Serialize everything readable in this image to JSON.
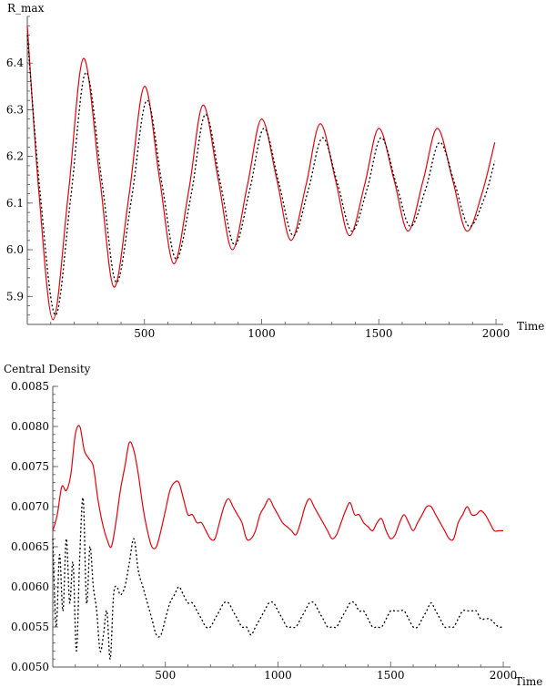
{
  "chart_data": [
    {
      "type": "line",
      "ylabel": "R_max",
      "xlabel": "Time",
      "xlim": [
        0,
        2000
      ],
      "ylim": [
        5.84,
        6.5
      ],
      "x_ticks": [
        500,
        1000,
        1500,
        2000
      ],
      "y_ticks": [
        5.9,
        6.0,
        6.1,
        6.2,
        6.3,
        6.4
      ],
      "y_tick_labels": [
        "5.9",
        "6.0",
        "6.1",
        "6.2",
        "6.3",
        "6.4"
      ],
      "series": [
        {
          "style": "solid",
          "color": "#e8000b",
          "x": [
            0,
            50,
            110,
            175,
            240,
            310,
            370,
            435,
            500,
            565,
            625,
            690,
            750,
            815,
            875,
            940,
            1000,
            1065,
            1125,
            1190,
            1250,
            1315,
            1375,
            1440,
            1500,
            1565,
            1625,
            1690,
            1750,
            1815,
            1875,
            1940,
            1995
          ],
          "values": [
            6.48,
            6.12,
            5.85,
            6.12,
            6.41,
            6.15,
            5.92,
            6.12,
            6.35,
            6.15,
            5.97,
            6.13,
            6.31,
            6.15,
            6.0,
            6.14,
            6.28,
            6.15,
            6.02,
            6.14,
            6.27,
            6.15,
            6.03,
            6.14,
            6.26,
            6.15,
            6.04,
            6.15,
            6.26,
            6.15,
            6.04,
            6.12,
            6.23
          ]
        },
        {
          "style": "dotted",
          "color": "#000000",
          "x": [
            0,
            55,
            120,
            185,
            250,
            320,
            380,
            445,
            510,
            575,
            635,
            700,
            760,
            825,
            885,
            950,
            1010,
            1075,
            1135,
            1200,
            1260,
            1325,
            1385,
            1450,
            1510,
            1575,
            1635,
            1700,
            1760,
            1825,
            1885,
            1950,
            1995
          ],
          "values": [
            6.46,
            6.12,
            5.86,
            6.11,
            6.38,
            6.14,
            5.93,
            6.11,
            6.32,
            6.14,
            5.98,
            6.12,
            6.29,
            6.14,
            6.01,
            6.13,
            6.26,
            6.14,
            6.03,
            6.13,
            6.24,
            6.14,
            6.04,
            6.13,
            6.24,
            6.14,
            6.05,
            6.13,
            6.23,
            6.14,
            6.05,
            6.11,
            6.19
          ]
        }
      ]
    },
    {
      "type": "line",
      "ylabel": "Central  Density",
      "xlabel": "Time",
      "xlim": [
        0,
        2000
      ],
      "ylim": [
        0.005,
        0.0085
      ],
      "x_ticks": [
        500,
        1000,
        1500,
        2000
      ],
      "y_ticks": [
        0.005,
        0.0055,
        0.006,
        0.0065,
        0.007,
        0.0075,
        0.008,
        0.0085
      ],
      "y_tick_labels": [
        "0.0050",
        "0.0055",
        "0.0060",
        "0.0065",
        "0.0070",
        "0.0075",
        "0.0080",
        "0.0085"
      ],
      "series": [
        {
          "style": "solid",
          "color": "#e8000b",
          "x": [
            0,
            20,
            40,
            60,
            80,
            100,
            120,
            140,
            160,
            180,
            200,
            220,
            240,
            260,
            280,
            300,
            320,
            340,
            360,
            380,
            400,
            420,
            440,
            460,
            480,
            500,
            520,
            540,
            560,
            580,
            600,
            620,
            640,
            660,
            680,
            700,
            720,
            740,
            760,
            780,
            800,
            820,
            840,
            860,
            880,
            900,
            920,
            940,
            960,
            980,
            1000,
            1020,
            1040,
            1060,
            1080,
            1100,
            1120,
            1140,
            1160,
            1180,
            1200,
            1220,
            1240,
            1260,
            1280,
            1300,
            1320,
            1340,
            1360,
            1380,
            1400,
            1420,
            1440,
            1460,
            1480,
            1500,
            1520,
            1540,
            1560,
            1580,
            1600,
            1620,
            1640,
            1660,
            1680,
            1700,
            1720,
            1740,
            1760,
            1780,
            1800,
            1820,
            1840,
            1860,
            1880,
            1900,
            1920,
            1940,
            1960,
            1980,
            2000
          ],
          "values": [
            0.0067,
            0.0069,
            0.00725,
            0.0072,
            0.0074,
            0.0079,
            0.008,
            0.0077,
            0.0076,
            0.0075,
            0.0071,
            0.0068,
            0.0066,
            0.0065,
            0.0068,
            0.0072,
            0.0075,
            0.0078,
            0.0077,
            0.0074,
            0.007,
            0.0067,
            0.0065,
            0.0065,
            0.0067,
            0.00695,
            0.0072,
            0.0073,
            0.0073,
            0.0071,
            0.0069,
            0.0069,
            0.0068,
            0.0068,
            0.0067,
            0.0066,
            0.0066,
            0.0068,
            0.007,
            0.0071,
            0.007,
            0.0069,
            0.0068,
            0.0066,
            0.0066,
            0.0067,
            0.0069,
            0.007,
            0.0071,
            0.007,
            0.0069,
            0.0068,
            0.00675,
            0.0067,
            0.00665,
            0.0068,
            0.007,
            0.0071,
            0.007,
            0.0069,
            0.0068,
            0.0067,
            0.0066,
            0.00665,
            0.0068,
            0.00695,
            0.00705,
            0.0069,
            0.0069,
            0.0068,
            0.00675,
            0.0067,
            0.0068,
            0.00685,
            0.0067,
            0.0066,
            0.00665,
            0.0068,
            0.0069,
            0.0068,
            0.0067,
            0.0068,
            0.0069,
            0.007,
            0.007,
            0.0069,
            0.0068,
            0.0067,
            0.0066,
            0.0066,
            0.0068,
            0.0069,
            0.007,
            0.0069,
            0.0069,
            0.00695,
            0.0069,
            0.0068,
            0.0067,
            0.0067,
            0.0067
          ]
        },
        {
          "style": "dotted",
          "color": "#000000",
          "x": [
            0,
            15,
            30,
            45,
            60,
            75,
            90,
            105,
            120,
            135,
            150,
            165,
            180,
            195,
            210,
            225,
            240,
            255,
            270,
            285,
            300,
            320,
            340,
            360,
            380,
            400,
            420,
            440,
            460,
            480,
            500,
            520,
            540,
            560,
            580,
            600,
            620,
            640,
            660,
            680,
            700,
            720,
            740,
            760,
            780,
            800,
            820,
            840,
            860,
            880,
            900,
            920,
            940,
            960,
            980,
            1000,
            1020,
            1040,
            1060,
            1080,
            1100,
            1120,
            1140,
            1160,
            1180,
            1200,
            1220,
            1240,
            1260,
            1280,
            1300,
            1320,
            1340,
            1360,
            1380,
            1400,
            1420,
            1440,
            1460,
            1480,
            1500,
            1520,
            1540,
            1560,
            1580,
            1600,
            1620,
            1640,
            1660,
            1680,
            1700,
            1720,
            1740,
            1760,
            1780,
            1800,
            1820,
            1840,
            1860,
            1880,
            1900,
            1920,
            1940,
            1960,
            1980,
            2000
          ],
          "values": [
            0.0066,
            0.0055,
            0.0064,
            0.0057,
            0.0066,
            0.0058,
            0.0063,
            0.0052,
            0.0064,
            0.0071,
            0.0058,
            0.0065,
            0.006,
            0.0057,
            0.0052,
            0.0054,
            0.0057,
            0.0051,
            0.0059,
            0.006,
            0.0059,
            0.006,
            0.0063,
            0.0066,
            0.0062,
            0.006,
            0.0058,
            0.0056,
            0.0054,
            0.0054,
            0.0056,
            0.0058,
            0.0059,
            0.006,
            0.0059,
            0.0058,
            0.0058,
            0.0057,
            0.0056,
            0.0055,
            0.0055,
            0.0056,
            0.0057,
            0.0058,
            0.0058,
            0.0057,
            0.0056,
            0.0055,
            0.0055,
            0.0054,
            0.0055,
            0.0056,
            0.0057,
            0.0058,
            0.0058,
            0.0057,
            0.0056,
            0.0055,
            0.0055,
            0.0055,
            0.0056,
            0.0057,
            0.0058,
            0.0058,
            0.0057,
            0.0056,
            0.0055,
            0.0055,
            0.0055,
            0.0056,
            0.0057,
            0.0058,
            0.0058,
            0.0057,
            0.0057,
            0.0056,
            0.0055,
            0.0055,
            0.0055,
            0.0056,
            0.0057,
            0.0057,
            0.0057,
            0.0057,
            0.0056,
            0.0055,
            0.0055,
            0.0056,
            0.0057,
            0.0058,
            0.0057,
            0.0056,
            0.0055,
            0.0055,
            0.0055,
            0.0056,
            0.0057,
            0.0057,
            0.0057,
            0.0057,
            0.0056,
            0.0056,
            0.0056,
            0.00555,
            0.0055,
            0.0055
          ]
        }
      ]
    }
  ]
}
